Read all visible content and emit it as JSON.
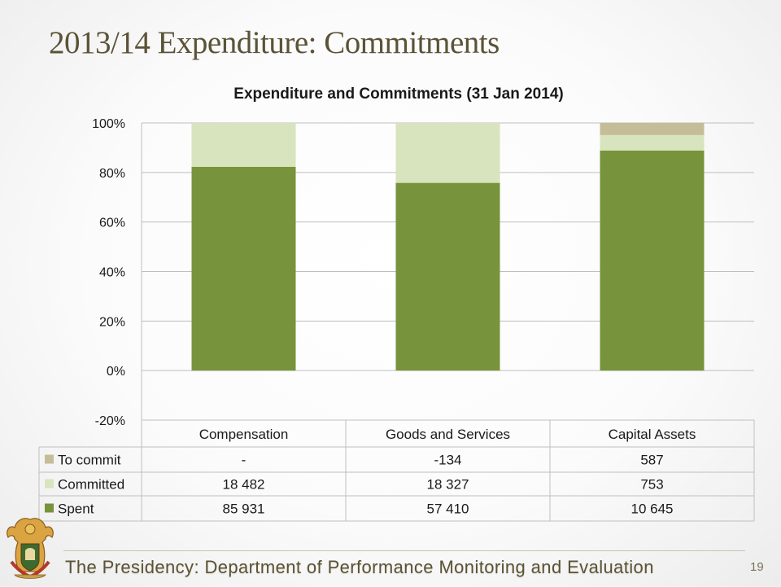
{
  "slide": {
    "title": "2013/14 Expenditure: Commitments",
    "footer": "The Presidency: Department of Performance Monitoring and Evaluation",
    "page_number": "19"
  },
  "colors": {
    "spent": "#77933c",
    "committed": "#d7e4bd",
    "to_commit": "#c4bd97",
    "grid": "#bfbfbf",
    "text": "#1a1a1a"
  },
  "chart_data": {
    "type": "bar",
    "stacked": "percent",
    "title": "Expenditure and Commitments (31 Jan 2014)",
    "categories": [
      "Compensation",
      "Goods and Services",
      "Capital Assets"
    ],
    "ylim": [
      -20,
      100
    ],
    "yticks": [
      100,
      80,
      60,
      40,
      20,
      0,
      -20
    ],
    "ytick_labels": [
      "100%",
      "80%",
      "60%",
      "40%",
      "20%",
      "0%",
      "-20%"
    ],
    "grid": true,
    "legend_placement": "data-table",
    "series": [
      {
        "name": "Spent",
        "values": [
          85931,
          57410,
          10645
        ],
        "labels": [
          "85 931",
          "57 410",
          "10 645"
        ]
      },
      {
        "name": "Committed",
        "values": [
          18482,
          18327,
          753
        ],
        "labels": [
          "18 482",
          "18 327",
          "753"
        ]
      },
      {
        "name": "To commit",
        "values": [
          0,
          -134,
          587
        ],
        "labels": [
          "-",
          "-134",
          "587"
        ]
      }
    ]
  }
}
